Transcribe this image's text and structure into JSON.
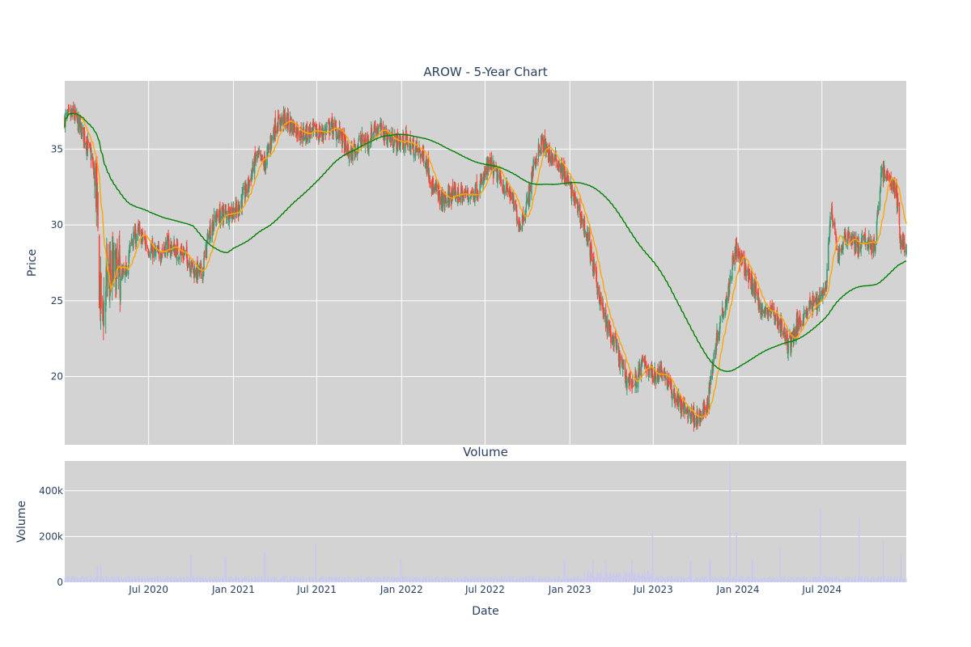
{
  "chart_data": {
    "type": "candlestick",
    "title": "AROW - 5-Year Chart",
    "price_panel": {
      "ylabel": "Price",
      "ylim": [
        15.5,
        39.5
      ],
      "yticks": [
        20,
        25,
        30,
        35
      ],
      "background": "#d3d3d3",
      "grid": true,
      "colors": {
        "increasing": "#3d9970",
        "decreasing": "#ff4136",
        "ma_short": "#ffa500",
        "ma_long": "#008000"
      },
      "series_names": [
        "",
        "",
        ""
      ],
      "anchors_close": [
        [
          "2020-01-02",
          37.0
        ],
        [
          "2020-01-20",
          37.3
        ],
        [
          "2020-02-10",
          36.0
        ],
        [
          "2020-02-28",
          34.5
        ],
        [
          "2020-03-10",
          32.0
        ],
        [
          "2020-03-16",
          26.0
        ],
        [
          "2020-03-23",
          24.0
        ],
        [
          "2020-04-01",
          26.5
        ],
        [
          "2020-04-20",
          27.0
        ],
        [
          "2020-05-10",
          26.5
        ],
        [
          "2020-05-25",
          29.0
        ],
        [
          "2020-06-10",
          29.5
        ],
        [
          "2020-07-01",
          28.5
        ],
        [
          "2020-07-20",
          28.0
        ],
        [
          "2020-08-10",
          28.7
        ],
        [
          "2020-09-01",
          28.3
        ],
        [
          "2020-09-20",
          28.0
        ],
        [
          "2020-10-05",
          27.0
        ],
        [
          "2020-10-25",
          26.8
        ],
        [
          "2020-11-09",
          29.5
        ],
        [
          "2020-11-25",
          30.5
        ],
        [
          "2020-12-15",
          30.8
        ],
        [
          "2021-01-10",
          31.0
        ],
        [
          "2021-02-01",
          32.5
        ],
        [
          "2021-02-20",
          34.5
        ],
        [
          "2021-03-10",
          34.0
        ],
        [
          "2021-04-01",
          36.5
        ],
        [
          "2021-04-20",
          37.0
        ],
        [
          "2021-05-10",
          36.5
        ],
        [
          "2021-06-01",
          36.0
        ],
        [
          "2021-06-20",
          36.2
        ],
        [
          "2021-07-10",
          36.0
        ],
        [
          "2021-08-01",
          36.5
        ],
        [
          "2021-08-20",
          36.0
        ],
        [
          "2021-09-10",
          34.5
        ],
        [
          "2021-10-01",
          35.5
        ],
        [
          "2021-10-20",
          35.5
        ],
        [
          "2021-11-05",
          36.5
        ],
        [
          "2021-11-25",
          36.0
        ],
        [
          "2021-12-15",
          35.5
        ],
        [
          "2022-01-10",
          35.5
        ],
        [
          "2022-02-01",
          35.0
        ],
        [
          "2022-02-20",
          34.5
        ],
        [
          "2022-03-10",
          32.5
        ],
        [
          "2022-04-01",
          31.5
        ],
        [
          "2022-04-20",
          32.0
        ],
        [
          "2022-05-10",
          32.0
        ],
        [
          "2022-06-01",
          32.0
        ],
        [
          "2022-06-20",
          32.5
        ],
        [
          "2022-07-10",
          34.0
        ],
        [
          "2022-08-01",
          33.0
        ],
        [
          "2022-08-25",
          32.0
        ],
        [
          "2022-09-15",
          30.0
        ],
        [
          "2022-10-01",
          31.5
        ],
        [
          "2022-10-15",
          34.0
        ],
        [
          "2022-11-01",
          35.5
        ],
        [
          "2022-11-20",
          34.5
        ],
        [
          "2022-12-10",
          34.0
        ],
        [
          "2023-01-01",
          32.5
        ],
        [
          "2023-01-20",
          31.0
        ],
        [
          "2023-02-10",
          29.0
        ],
        [
          "2023-03-01",
          26.0
        ],
        [
          "2023-03-20",
          23.5
        ],
        [
          "2023-04-10",
          22.0
        ],
        [
          "2023-05-01",
          20.0
        ],
        [
          "2023-05-20",
          19.5
        ],
        [
          "2023-06-10",
          21.0
        ],
        [
          "2023-07-01",
          20.0
        ],
        [
          "2023-07-20",
          20.5
        ],
        [
          "2023-08-10",
          19.0
        ],
        [
          "2023-09-01",
          18.0
        ],
        [
          "2023-09-20",
          17.5
        ],
        [
          "2023-10-10",
          17.2
        ],
        [
          "2023-10-25",
          18.0
        ],
        [
          "2023-11-10",
          21.5
        ],
        [
          "2023-11-25",
          24.0
        ],
        [
          "2023-12-10",
          25.5
        ],
        [
          "2023-12-25",
          28.5
        ],
        [
          "2024-01-10",
          27.5
        ],
        [
          "2024-01-25",
          26.5
        ],
        [
          "2024-02-10",
          25.5
        ],
        [
          "2024-02-25",
          24.0
        ],
        [
          "2024-03-10",
          24.5
        ],
        [
          "2024-04-01",
          23.5
        ],
        [
          "2024-04-20",
          22.0
        ],
        [
          "2024-05-10",
          23.5
        ],
        [
          "2024-06-01",
          24.5
        ],
        [
          "2024-06-20",
          25.0
        ],
        [
          "2024-07-10",
          26.0
        ],
        [
          "2024-07-20",
          31.0
        ],
        [
          "2024-08-05",
          28.0
        ],
        [
          "2024-08-25",
          29.5
        ],
        [
          "2024-09-15",
          28.5
        ],
        [
          "2024-10-05",
          29.0
        ],
        [
          "2024-10-25",
          28.5
        ],
        [
          "2024-11-06",
          33.5
        ],
        [
          "2024-11-25",
          33.0
        ],
        [
          "2024-12-10",
          32.0
        ],
        [
          "2024-12-18",
          29.0
        ],
        [
          "2024-12-31",
          28.5
        ]
      ]
    },
    "volume_panel": {
      "title": "Volume",
      "ylabel": "Volume",
      "ylim": [
        0,
        530000
      ],
      "yticks": [
        0,
        200000,
        400000
      ],
      "ytick_labels": [
        "0",
        "200k",
        "400k"
      ],
      "bar_color": "#c8c8f0",
      "baseline": 20000,
      "spikes": [
        [
          "2020-03-12",
          70000
        ],
        [
          "2020-03-20",
          75000
        ],
        [
          "2020-10-01",
          120000
        ],
        [
          "2020-12-15",
          110000
        ],
        [
          "2021-03-10",
          130000
        ],
        [
          "2021-06-28",
          170000
        ],
        [
          "2021-12-30",
          100000
        ],
        [
          "2022-12-20",
          100000
        ],
        [
          "2023-02-20",
          100000
        ],
        [
          "2023-03-20",
          90000
        ],
        [
          "2023-05-15",
          100000
        ],
        [
          "2023-06-30",
          220000
        ],
        [
          "2023-09-20",
          90000
        ],
        [
          "2023-11-01",
          100000
        ],
        [
          "2023-12-15",
          520000
        ],
        [
          "2023-12-29",
          220000
        ],
        [
          "2024-02-01",
          100000
        ],
        [
          "2024-04-01",
          150000
        ],
        [
          "2024-06-28",
          320000
        ],
        [
          "2024-09-20",
          280000
        ],
        [
          "2024-11-10",
          190000
        ],
        [
          "2024-12-20",
          120000
        ]
      ]
    },
    "xaxis": {
      "label": "Date",
      "range": [
        "2020-01-01",
        "2024-12-31"
      ],
      "ticks": [
        [
          "2020-07-01",
          "Jul 2020"
        ],
        [
          "2021-01-01",
          "Jan 2021"
        ],
        [
          "2021-07-01",
          "Jul 2021"
        ],
        [
          "2022-01-01",
          "Jan 2022"
        ],
        [
          "2022-07-01",
          "Jul 2022"
        ],
        [
          "2023-01-01",
          "Jan 2023"
        ],
        [
          "2023-07-01",
          "Jul 2023"
        ],
        [
          "2024-01-01",
          "Jan 2024"
        ],
        [
          "2024-07-01",
          "Jul 2024"
        ]
      ]
    }
  }
}
